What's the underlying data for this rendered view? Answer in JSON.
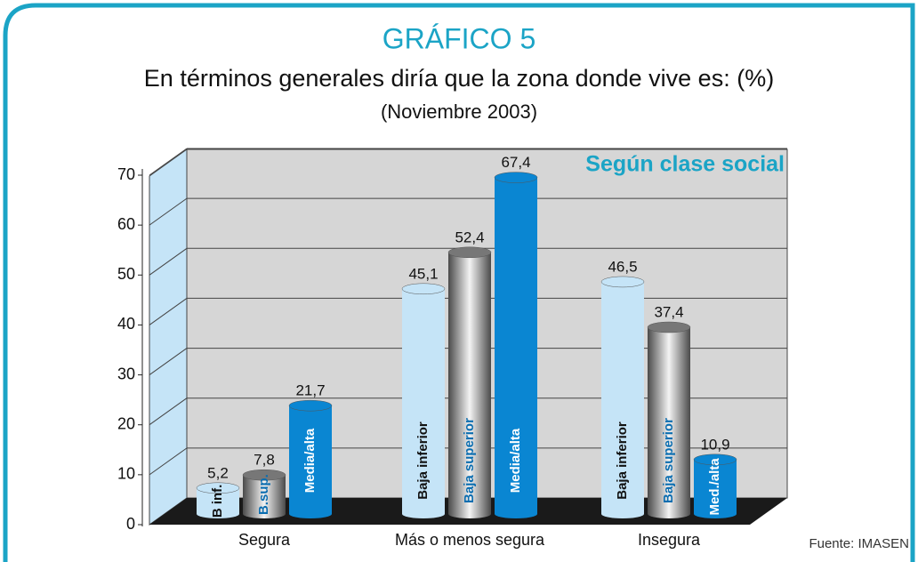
{
  "chart_data": {
    "type": "bar",
    "title": "GRÁFICO 5",
    "subtitle": "En términos generales diría que la zona donde vive es: (%)",
    "date": "(Noviembre 2003)",
    "annotation": "Según clase social",
    "source": "Fuente: IMASEN",
    "categories": [
      "Segura",
      "Más o menos segura",
      "Insegura"
    ],
    "series": [
      {
        "color": "#c5e4f7",
        "values": [
          5.2,
          45.1,
          46.5
        ],
        "value_labels": [
          "5,2",
          "45,1",
          "46,5"
        ],
        "bar_labels": [
          "B inf.",
          "Baja inferior",
          "Baja inferior"
        ]
      },
      {
        "color": "#8a8a8a",
        "values": [
          7.8,
          52.4,
          37.4
        ],
        "value_labels": [
          "7,8",
          "52,4",
          "37,4"
        ],
        "bar_labels": [
          "B.sup.",
          "Baja superior",
          "Baja superior"
        ]
      },
      {
        "color": "#0a86d2",
        "values": [
          21.7,
          67.4,
          10.9
        ],
        "value_labels": [
          "21,7",
          "67,4",
          "10,9"
        ],
        "bar_labels": [
          "Media/alta",
          "Media/alta",
          "Med./alta"
        ]
      }
    ],
    "ylim": [
      0,
      70
    ],
    "yticks": [
      0,
      10,
      20,
      30,
      40,
      50,
      60,
      70
    ],
    "grid": true
  }
}
